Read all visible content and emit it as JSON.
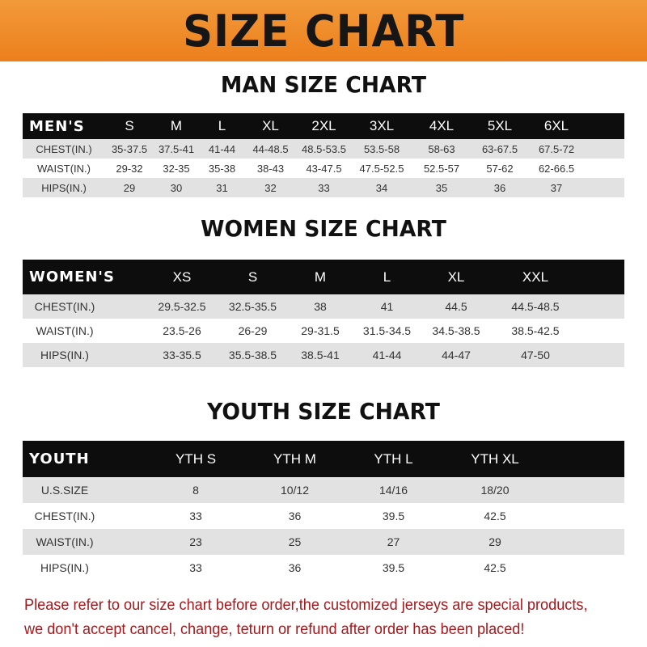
{
  "banner": {
    "title": "SIZE CHART",
    "color": "#ee8a28"
  },
  "men": {
    "title": "MAN SIZE CHART",
    "header": [
      "MEN'S",
      "S",
      "M",
      "L",
      "XL",
      "2XL",
      "3XL",
      "4XL",
      "5XL",
      "6XL"
    ],
    "rows": [
      [
        "CHEST(IN.)",
        "35-37.5",
        "37.5-41",
        "41-44",
        "44-48.5",
        "48.5-53.5",
        "53.5-58",
        "58-63",
        "63-67.5",
        "67.5-72"
      ],
      [
        "WAIST(IN.)",
        "29-32",
        "32-35",
        "35-38",
        "38-43",
        "43-47.5",
        "47.5-52.5",
        "52.5-57",
        "57-62",
        "62-66.5"
      ],
      [
        "HIPS(IN.)",
        "29",
        "30",
        "31",
        "32",
        "33",
        "34",
        "35",
        "36",
        "37"
      ]
    ]
  },
  "women": {
    "title": "WOMEN SIZE CHART",
    "header": [
      "WOMEN'S",
      "XS",
      "S",
      "M",
      "L",
      "XL",
      "XXL"
    ],
    "rows": [
      [
        "CHEST(IN.)",
        "29.5-32.5",
        "32.5-35.5",
        "38",
        "41",
        "44.5",
        "44.5-48.5"
      ],
      [
        "WAIST(IN.)",
        "23.5-26",
        "26-29",
        "29-31.5",
        "31.5-34.5",
        "34.5-38.5",
        "38.5-42.5"
      ],
      [
        "HIPS(IN.)",
        "33-35.5",
        "35.5-38.5",
        "38.5-41",
        "41-44",
        "44-47",
        "47-50"
      ]
    ]
  },
  "youth": {
    "title": "YOUTH SIZE CHART",
    "header": [
      "YOUTH",
      "YTH S",
      "YTH M",
      "YTH L",
      "YTH XL"
    ],
    "rows": [
      [
        "U.S.SIZE",
        "8",
        "10/12",
        "14/16",
        "18/20"
      ],
      [
        "CHEST(IN.)",
        "33",
        "36",
        "39.5",
        "42.5"
      ],
      [
        "WAIST(IN.)",
        "23",
        "25",
        "27",
        "29"
      ],
      [
        "HIPS(IN.)",
        "33",
        "36",
        "39.5",
        "42.5"
      ]
    ]
  },
  "note": {
    "line1": "Please refer to our size chart before order,the customized jerseys are special products,",
    "line2": "we don't accept cancel, change, teturn or refund after order has been placed!",
    "color": "#a31a1e"
  }
}
